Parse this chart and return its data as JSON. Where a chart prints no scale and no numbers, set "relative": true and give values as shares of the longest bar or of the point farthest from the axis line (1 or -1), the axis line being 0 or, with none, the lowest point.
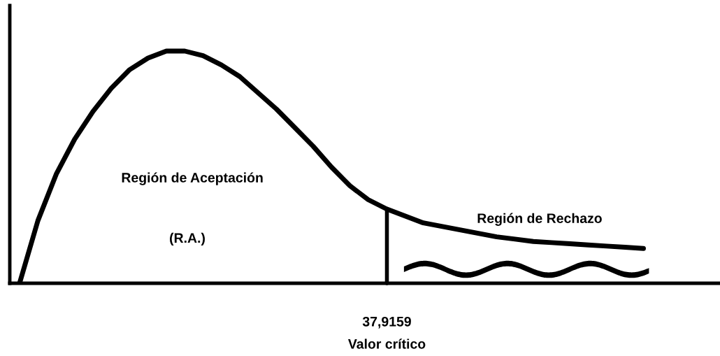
{
  "chart_data": {
    "type": "line",
    "relative": true,
    "color": "#000000",
    "categories": [
      null,
      null,
      null,
      null,
      null,
      null,
      null,
      null,
      null,
      null,
      null,
      null,
      null,
      null,
      null,
      null,
      null,
      null,
      null,
      null,
      null,
      null,
      null,
      null,
      null,
      null,
      null,
      null,
      null,
      null,
      null,
      null,
      null,
      null,
      null
    ],
    "values": [
      0,
      0.27,
      0.47,
      0.62,
      0.74,
      0.84,
      0.92,
      0.97,
      1.0,
      1.0,
      0.98,
      0.94,
      0.89,
      0.82,
      0.75,
      0.67,
      0.59,
      0.5,
      0.42,
      0.36,
      0.32,
      0.29,
      0.26,
      0.245,
      0.23,
      0.215,
      0.2,
      0.19,
      0.18,
      0.175,
      0.17,
      0.165,
      0.16,
      0.155,
      0.15
    ],
    "xlabel": "Valor crítico",
    "annotations": [
      "Región de Aceptación",
      "(R.A.)",
      "Región de Rechazo",
      "37,9159"
    ],
    "marker": "none",
    "line_style": "solid"
  }
}
